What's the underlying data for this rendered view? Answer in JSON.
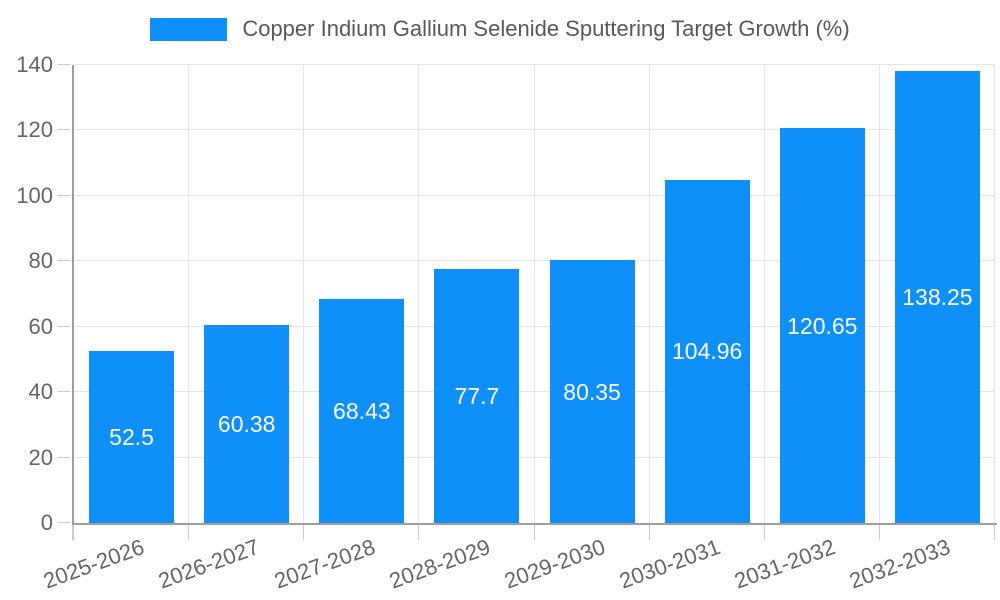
{
  "chart_data": {
    "type": "bar",
    "title": "Copper Indium Gallium Selenide Sputtering Target Growth (%)",
    "categories": [
      "2025-2026",
      "2026-2027",
      "2027-2028",
      "2028-2029",
      "2029-2030",
      "2030-2031",
      "2031-2032",
      "2032-2033"
    ],
    "values": [
      52.5,
      60.38,
      68.43,
      77.7,
      80.35,
      104.96,
      120.65,
      138.25
    ],
    "value_labels": [
      "52.5",
      "60.38",
      "68.43",
      "77.7",
      "80.35",
      "104.96",
      "120.65",
      "138.25"
    ],
    "xlabel": "",
    "ylabel": "",
    "ylim": [
      0,
      140
    ],
    "yticks": [
      0,
      20,
      40,
      60,
      80,
      100,
      120,
      140
    ],
    "grid": true,
    "legend_position": "top",
    "x_label_rotation_deg": -20,
    "colors": {
      "bar": "#0E90F8",
      "value_label": "#FFFFFF",
      "axis_line": "#9E9E9E",
      "grid_line": "#E6E6E6",
      "tick_mark": "#CCCCCC",
      "tick_label": "#666666",
      "legend_text": "#595959",
      "background": "#FFFFFF"
    }
  }
}
